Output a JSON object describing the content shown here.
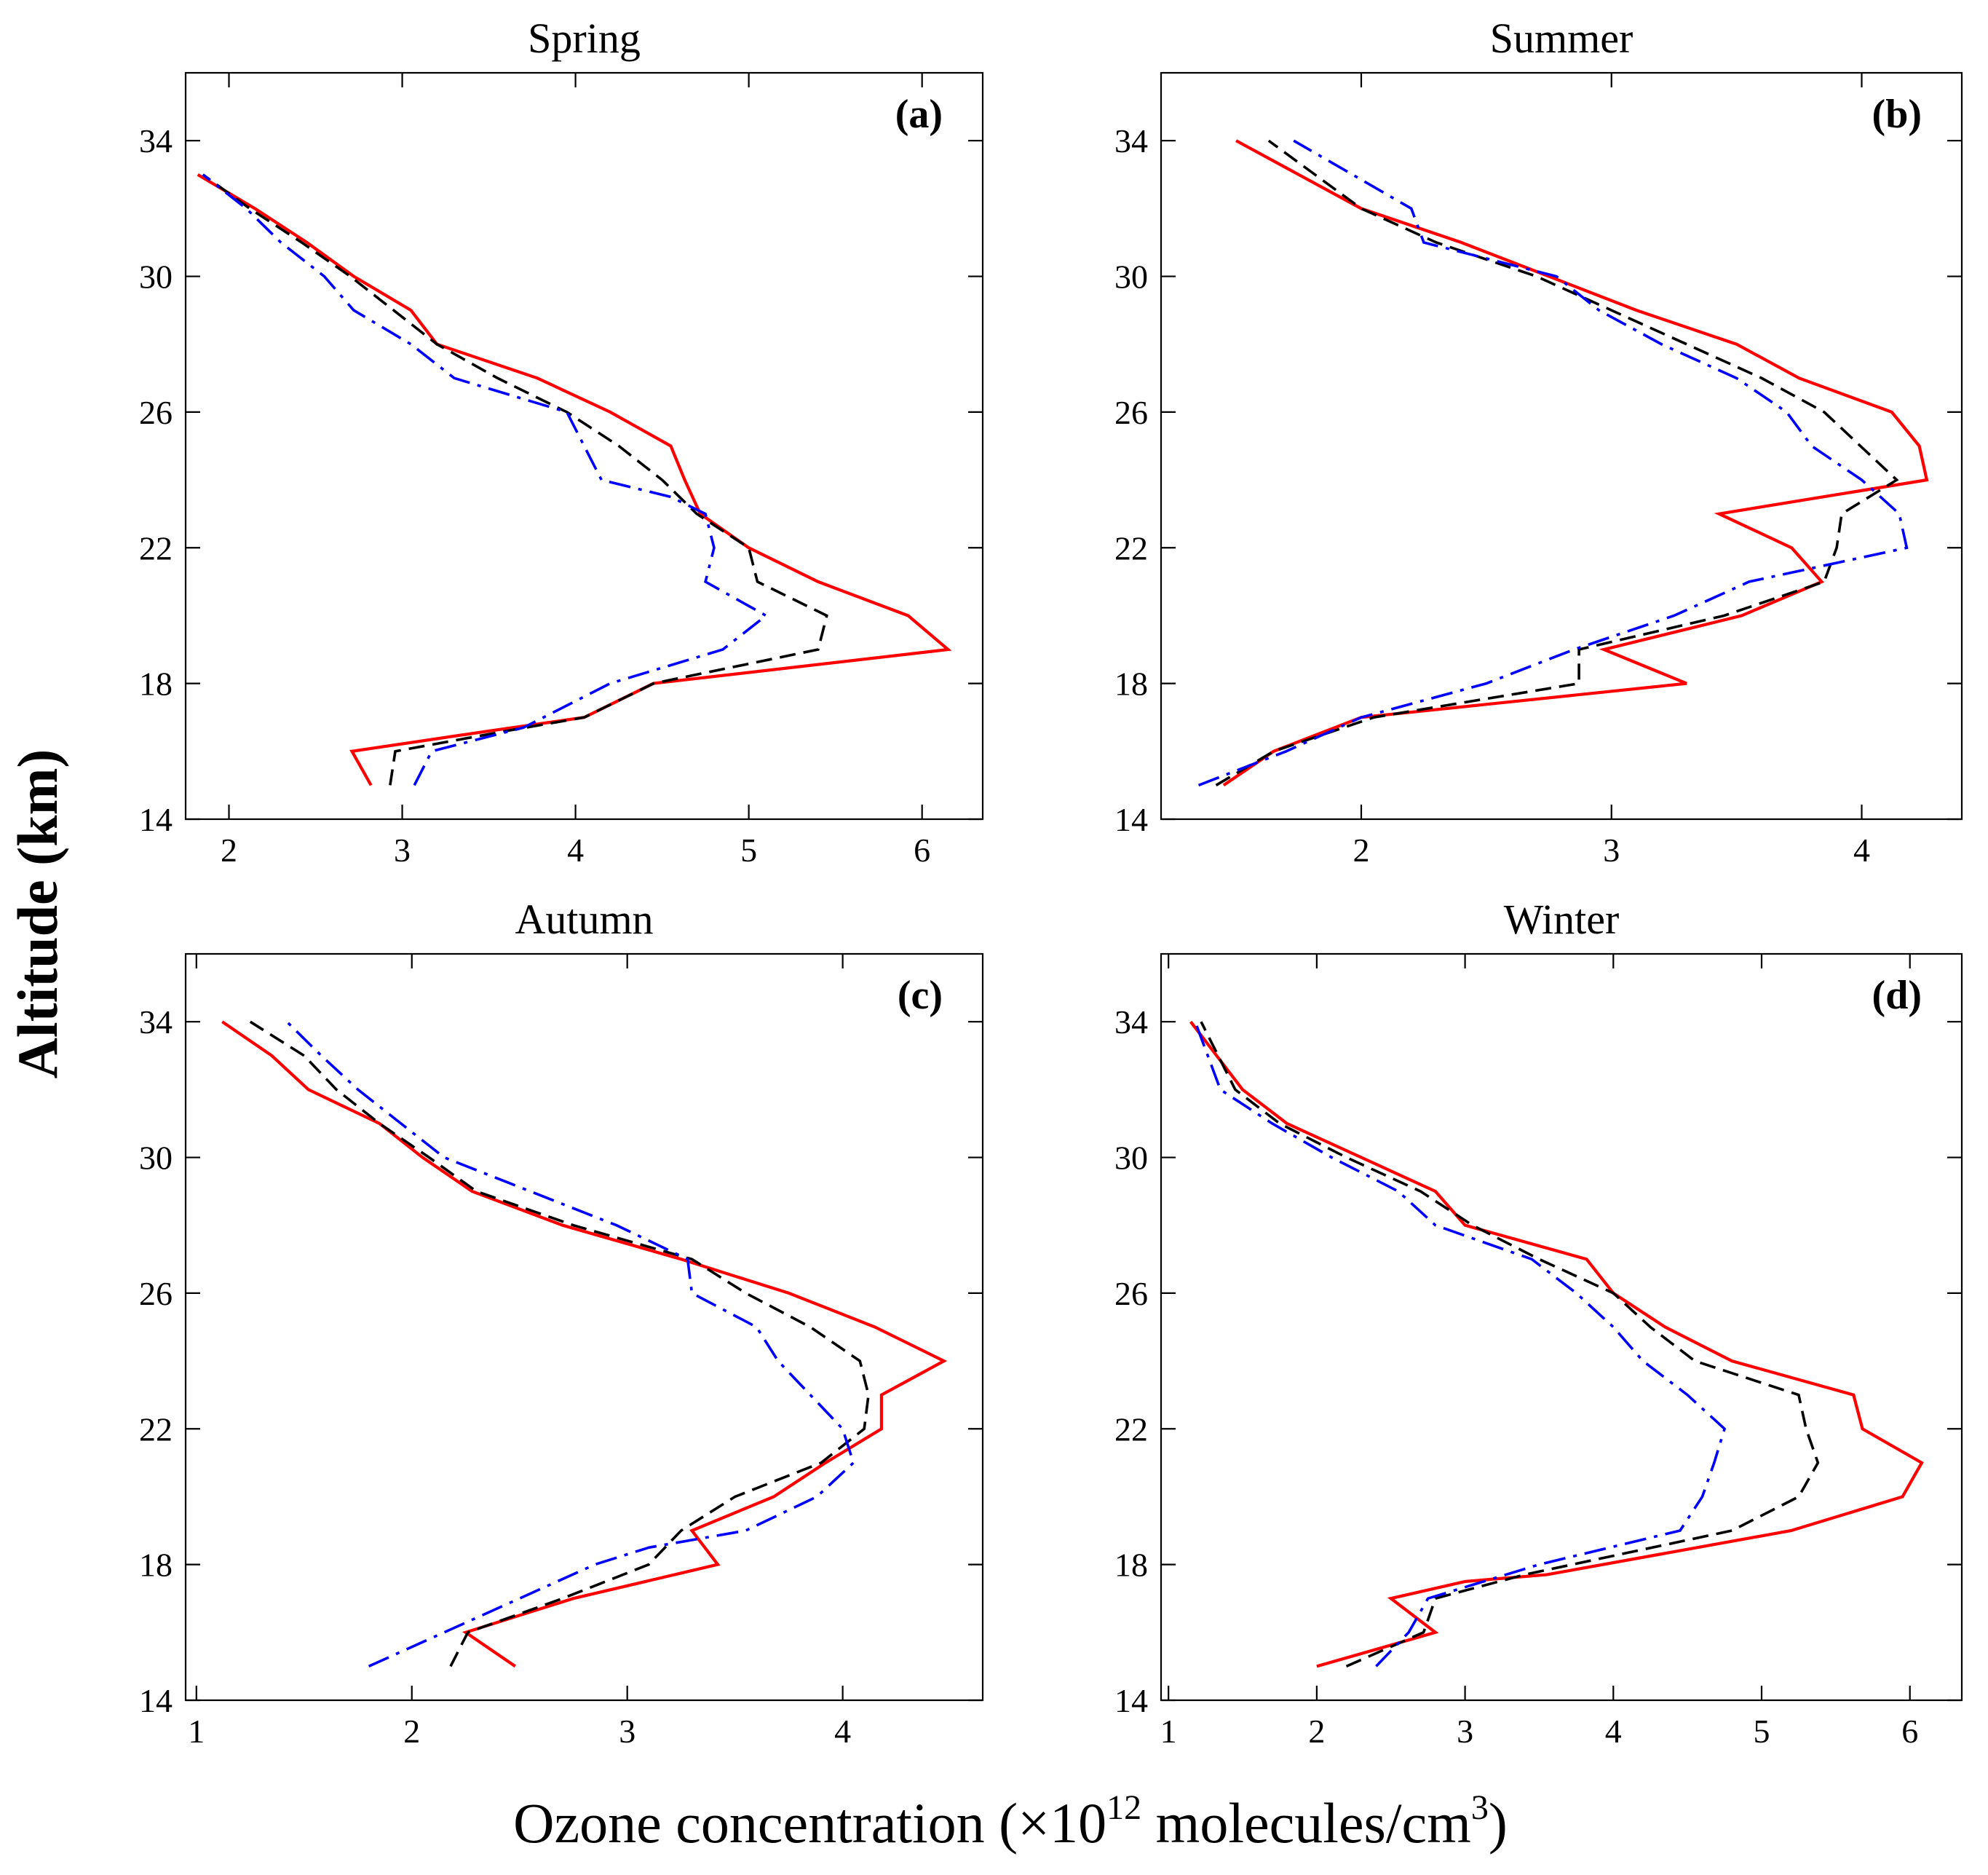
{
  "figure": {
    "ylabel": "Altitude (km)",
    "xlabel_prefix": "Ozone concentration (×10",
    "xlabel_exp": "12",
    "xlabel_mid": " molecules/cm",
    "xlabel_unit_exp": "3",
    "xlabel_suffix": ")"
  },
  "colors": {
    "red": "#ff0000",
    "black": "#000000",
    "blue": "#0000ff"
  },
  "chart_data": [
    {
      "type": "line",
      "title": "Spring",
      "letter": "(a)",
      "xlim": [
        1.75,
        6.35
      ],
      "xticks": [
        2,
        3,
        4,
        5,
        6
      ],
      "ylim": [
        14,
        36
      ],
      "yticks": [
        14,
        18,
        22,
        26,
        30,
        34
      ],
      "series": [
        {
          "name": "red solid",
          "color": "#ff0000",
          "style": "solid",
          "points": [
            [
              2.82,
              15
            ],
            [
              2.71,
              16
            ],
            [
              3.5,
              16.6
            ],
            [
              4.05,
              17
            ],
            [
              4.45,
              18
            ],
            [
              6.15,
              19
            ],
            [
              5.92,
              20
            ],
            [
              5.4,
              21
            ],
            [
              5.0,
              22
            ],
            [
              4.72,
              23
            ],
            [
              4.63,
              24
            ],
            [
              4.55,
              25
            ],
            [
              4.2,
              26
            ],
            [
              3.78,
              27
            ],
            [
              3.2,
              28
            ],
            [
              3.05,
              29
            ],
            [
              2.72,
              30
            ],
            [
              2.45,
              31
            ],
            [
              2.15,
              32
            ],
            [
              1.82,
              33
            ]
          ]
        },
        {
          "name": "black dashed",
          "color": "#000000",
          "style": "dashed",
          "points": [
            [
              2.93,
              15
            ],
            [
              2.96,
              16
            ],
            [
              3.6,
              16.6
            ],
            [
              4.05,
              17
            ],
            [
              4.45,
              18
            ],
            [
              5.4,
              19
            ],
            [
              5.45,
              20
            ],
            [
              5.05,
              21
            ],
            [
              5.0,
              22
            ],
            [
              4.7,
              23
            ],
            [
              4.5,
              24
            ],
            [
              4.25,
              25
            ],
            [
              3.95,
              26
            ],
            [
              3.55,
              27
            ],
            [
              3.2,
              28
            ],
            [
              2.95,
              29
            ],
            [
              2.7,
              30
            ],
            [
              2.42,
              31
            ],
            [
              2.12,
              32
            ],
            [
              1.85,
              33
            ]
          ]
        },
        {
          "name": "blue dash-dot",
          "color": "#0000ff",
          "style": "dashdot",
          "points": [
            [
              3.07,
              15
            ],
            [
              3.17,
              16
            ],
            [
              3.7,
              16.7
            ],
            [
              4.2,
              18
            ],
            [
              4.85,
              19
            ],
            [
              5.1,
              20
            ],
            [
              4.75,
              21
            ],
            [
              4.8,
              22
            ],
            [
              4.75,
              23
            ],
            [
              4.55,
              23.5
            ],
            [
              4.15,
              24
            ],
            [
              3.95,
              26
            ],
            [
              3.3,
              27
            ],
            [
              3.05,
              28
            ],
            [
              2.72,
              29
            ],
            [
              2.55,
              30
            ],
            [
              2.3,
              31
            ],
            [
              2.1,
              32
            ],
            [
              1.85,
              33
            ]
          ]
        }
      ]
    },
    {
      "type": "line",
      "title": "Summer",
      "letter": "(b)",
      "xlim": [
        1.2,
        4.4
      ],
      "xticks": [
        2,
        3,
        4
      ],
      "ylim": [
        14,
        36
      ],
      "yticks": [
        14,
        18,
        22,
        26,
        30,
        34
      ],
      "series": [
        {
          "name": "red solid",
          "color": "#ff0000",
          "style": "solid",
          "points": [
            [
              1.45,
              15
            ],
            [
              1.65,
              16
            ],
            [
              2.0,
              17
            ],
            [
              3.3,
              18
            ],
            [
              2.97,
              19
            ],
            [
              3.52,
              20
            ],
            [
              3.84,
              21
            ],
            [
              3.72,
              22
            ],
            [
              3.43,
              23
            ],
            [
              4.26,
              24
            ],
            [
              4.23,
              25
            ],
            [
              4.12,
              26
            ],
            [
              3.75,
              27
            ],
            [
              3.5,
              28
            ],
            [
              3.1,
              29
            ],
            [
              2.75,
              30
            ],
            [
              2.4,
              31
            ],
            [
              2.0,
              32
            ],
            [
              1.5,
              34
            ]
          ]
        },
        {
          "name": "black dashed",
          "color": "#000000",
          "style": "dashed",
          "points": [
            [
              1.42,
              15
            ],
            [
              1.65,
              16
            ],
            [
              2.05,
              17
            ],
            [
              2.87,
              18
            ],
            [
              2.87,
              19
            ],
            [
              3.45,
              20
            ],
            [
              3.85,
              21
            ],
            [
              3.9,
              22
            ],
            [
              3.92,
              23
            ],
            [
              4.14,
              24
            ],
            [
              3.85,
              26
            ],
            [
              3.6,
              27
            ],
            [
              3.3,
              28
            ],
            [
              3.0,
              29
            ],
            [
              2.7,
              30
            ],
            [
              2.3,
              31
            ],
            [
              2.0,
              32
            ],
            [
              1.63,
              34
            ]
          ]
        },
        {
          "name": "blue dash-dot",
          "color": "#0000ff",
          "style": "dashdot",
          "points": [
            [
              1.35,
              15
            ],
            [
              1.7,
              16
            ],
            [
              2.0,
              17
            ],
            [
              2.5,
              18
            ],
            [
              2.85,
              19
            ],
            [
              3.25,
              20
            ],
            [
              3.55,
              21
            ],
            [
              4.18,
              22
            ],
            [
              4.15,
              23
            ],
            [
              4.0,
              24
            ],
            [
              3.8,
              25
            ],
            [
              3.7,
              26
            ],
            [
              3.5,
              27
            ],
            [
              3.2,
              28
            ],
            [
              2.95,
              29
            ],
            [
              2.78,
              30
            ],
            [
              2.25,
              31
            ],
            [
              2.2,
              32
            ],
            [
              1.73,
              34
            ]
          ]
        }
      ]
    },
    {
      "type": "line",
      "title": "Autumn",
      "letter": "(c)",
      "xlim": [
        0.95,
        4.65
      ],
      "xticks": [
        1,
        2,
        3,
        4
      ],
      "ylim": [
        14,
        36
      ],
      "yticks": [
        14,
        18,
        22,
        26,
        30,
        34
      ],
      "series": [
        {
          "name": "red solid",
          "color": "#ff0000",
          "style": "solid",
          "points": [
            [
              2.48,
              15
            ],
            [
              2.25,
              16
            ],
            [
              2.75,
              17
            ],
            [
              3.42,
              18
            ],
            [
              3.3,
              19
            ],
            [
              3.68,
              20
            ],
            [
              3.92,
              21
            ],
            [
              4.18,
              22
            ],
            [
              4.18,
              23
            ],
            [
              4.47,
              24
            ],
            [
              4.15,
              25
            ],
            [
              3.75,
              26
            ],
            [
              3.25,
              27
            ],
            [
              2.7,
              28
            ],
            [
              2.28,
              29
            ],
            [
              2.05,
              30
            ],
            [
              1.85,
              31
            ],
            [
              1.52,
              32
            ],
            [
              1.35,
              33
            ],
            [
              1.12,
              34
            ]
          ]
        },
        {
          "name": "black dashed",
          "color": "#000000",
          "style": "dashed",
          "points": [
            [
              2.18,
              15
            ],
            [
              2.26,
              16
            ],
            [
              2.7,
              17
            ],
            [
              3.1,
              18
            ],
            [
              3.25,
              19
            ],
            [
              3.5,
              20
            ],
            [
              3.9,
              21
            ],
            [
              4.1,
              22
            ],
            [
              4.12,
              23
            ],
            [
              4.08,
              24
            ],
            [
              3.85,
              25
            ],
            [
              3.55,
              26
            ],
            [
              3.3,
              27
            ],
            [
              2.75,
              28
            ],
            [
              2.3,
              29
            ],
            [
              2.08,
              30
            ],
            [
              1.85,
              31
            ],
            [
              1.65,
              32
            ],
            [
              1.5,
              33
            ],
            [
              1.25,
              34
            ]
          ]
        },
        {
          "name": "blue dash-dot",
          "color": "#0000ff",
          "style": "dashdot",
          "points": [
            [
              1.8,
              15
            ],
            [
              2.5,
              17
            ],
            [
              2.85,
              18
            ],
            [
              3.1,
              18.5
            ],
            [
              3.55,
              19
            ],
            [
              3.88,
              20
            ],
            [
              4.05,
              21
            ],
            [
              4.0,
              22
            ],
            [
              3.85,
              23
            ],
            [
              3.7,
              24
            ],
            [
              3.6,
              25
            ],
            [
              3.3,
              26
            ],
            [
              3.28,
              27
            ],
            [
              2.95,
              28
            ],
            [
              2.55,
              29
            ],
            [
              2.15,
              30
            ],
            [
              1.95,
              31
            ],
            [
              1.75,
              32
            ],
            [
              1.58,
              33
            ],
            [
              1.42,
              34
            ]
          ]
        }
      ]
    },
    {
      "type": "line",
      "title": "Winter",
      "letter": "(d)",
      "xlim": [
        0.95,
        6.35
      ],
      "xticks": [
        1,
        2,
        3,
        4,
        5,
        6
      ],
      "ylim": [
        14,
        36
      ],
      "yticks": [
        14,
        18,
        22,
        26,
        30,
        34
      ],
      "series": [
        {
          "name": "red solid",
          "color": "#ff0000",
          "style": "solid",
          "points": [
            [
              2.0,
              15
            ],
            [
              2.8,
              16
            ],
            [
              2.5,
              17
            ],
            [
              3.0,
              17.5
            ],
            [
              3.55,
              17.7
            ],
            [
              5.2,
              19
            ],
            [
              5.95,
              20
            ],
            [
              6.08,
              21
            ],
            [
              5.68,
              22
            ],
            [
              5.62,
              23
            ],
            [
              4.8,
              24
            ],
            [
              4.35,
              25
            ],
            [
              4.0,
              26
            ],
            [
              3.82,
              27
            ],
            [
              3.0,
              28
            ],
            [
              2.8,
              29
            ],
            [
              2.3,
              30
            ],
            [
              1.8,
              31
            ],
            [
              1.5,
              32
            ],
            [
              1.15,
              34
            ]
          ]
        },
        {
          "name": "black dashed",
          "color": "#000000",
          "style": "dashed",
          "points": [
            [
              2.2,
              15
            ],
            [
              2.72,
              16
            ],
            [
              2.8,
              17
            ],
            [
              3.4,
              17.7
            ],
            [
              4.8,
              19
            ],
            [
              5.25,
              20
            ],
            [
              5.38,
              21
            ],
            [
              5.3,
              22
            ],
            [
              5.25,
              23
            ],
            [
              4.55,
              24
            ],
            [
              4.25,
              25
            ],
            [
              4.0,
              26
            ],
            [
              3.5,
              27
            ],
            [
              3.05,
              28
            ],
            [
              2.7,
              29
            ],
            [
              2.2,
              30
            ],
            [
              1.75,
              31
            ],
            [
              1.45,
              32
            ],
            [
              1.22,
              34
            ]
          ]
        },
        {
          "name": "blue dash-dot",
          "color": "#0000ff",
          "style": "dashdot",
          "points": [
            [
              2.4,
              15
            ],
            [
              2.62,
              16
            ],
            [
              2.75,
              17
            ],
            [
              3.5,
              18
            ],
            [
              4.45,
              19
            ],
            [
              4.6,
              20
            ],
            [
              4.68,
              21
            ],
            [
              4.75,
              22
            ],
            [
              4.5,
              23
            ],
            [
              4.2,
              24
            ],
            [
              4.0,
              25
            ],
            [
              3.75,
              26
            ],
            [
              3.45,
              27
            ],
            [
              2.8,
              28
            ],
            [
              2.55,
              29
            ],
            [
              2.1,
              30
            ],
            [
              1.7,
              31
            ],
            [
              1.35,
              32
            ],
            [
              1.18,
              34
            ]
          ]
        }
      ]
    }
  ]
}
